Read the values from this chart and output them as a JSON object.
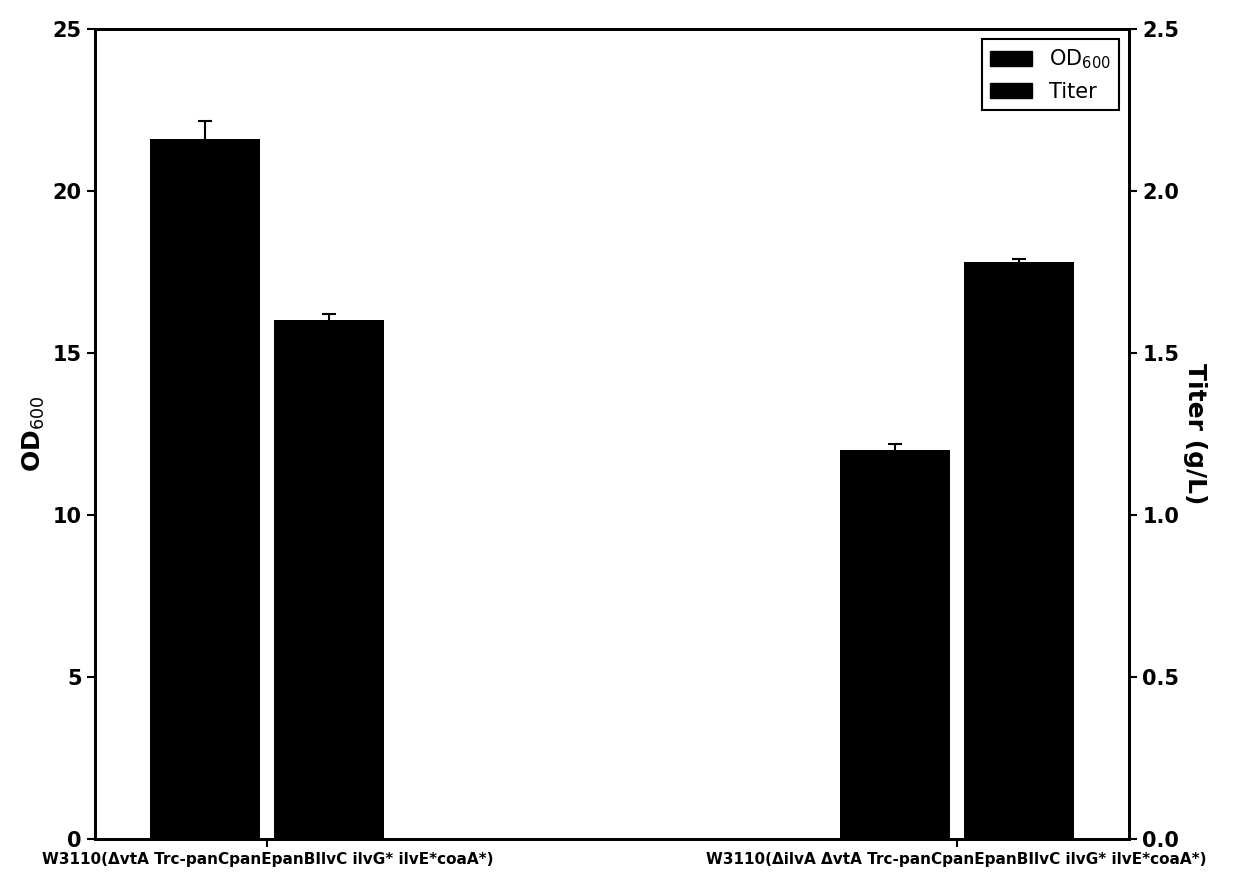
{
  "groups": [
    "W3110(ΔvtA Trc-panCpanEpanBIlvC ilvG* ilvE*coaA*)",
    "W3110(ΔilvA ΔvtA Trc-panCpanEpanBIlvC ilvG* ilvE*coaA*)"
  ],
  "od600_values": [
    21.6,
    12.0
  ],
  "od600_errors": [
    0.55,
    0.2
  ],
  "titer_values": [
    16.0,
    17.8
  ],
  "titer_errors": [
    0.2,
    0.1
  ],
  "bar_color": "#000000",
  "bar_width": 0.32,
  "group_centers": [
    0.5,
    2.5
  ],
  "ylim_left": [
    0,
    25
  ],
  "ylim_right": [
    0.0,
    2.5
  ],
  "ylabel_left": "OD$_{600}$",
  "ylabel_right": "Titer (g/L)",
  "legend_labels": [
    "OD$_{600}$",
    "Titer"
  ],
  "yticks_left": [
    0,
    5,
    10,
    15,
    20,
    25
  ],
  "yticks_right": [
    0.0,
    0.5,
    1.0,
    1.5,
    2.0,
    2.5
  ],
  "background_color": "#ffffff",
  "label_font_size": 18,
  "tick_font_size": 15,
  "legend_font_size": 15,
  "xlabel_font_size": 11
}
